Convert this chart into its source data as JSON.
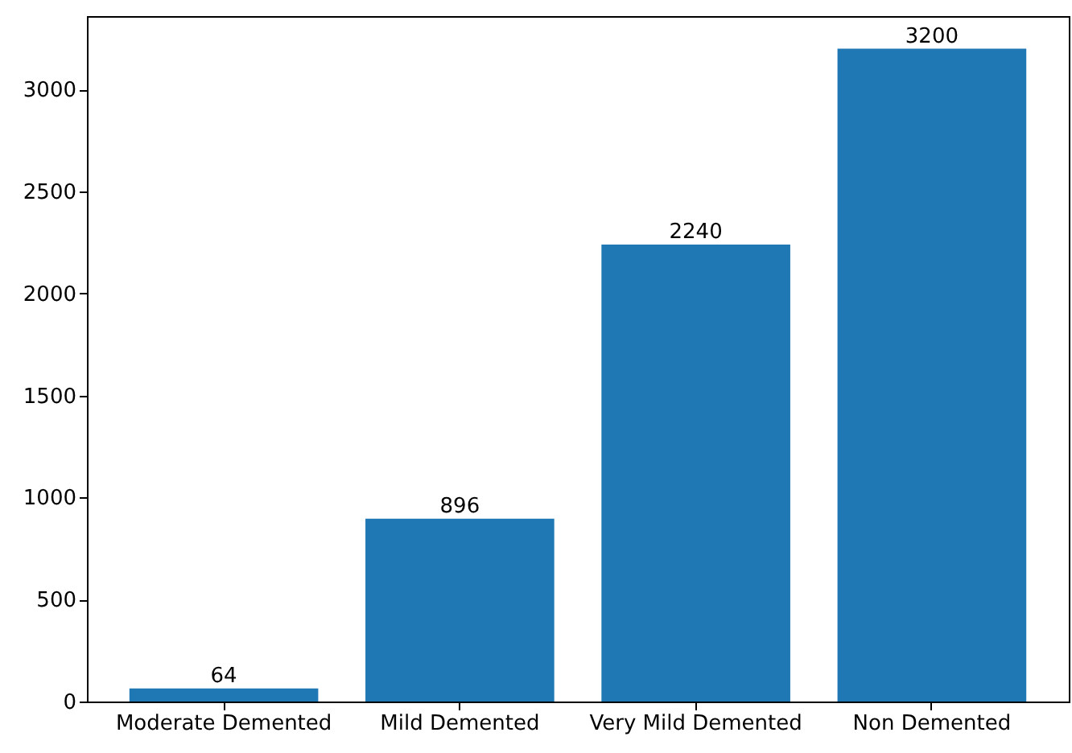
{
  "chart_data": {
    "type": "bar",
    "categories": [
      "Moderate  Demented",
      "Mild  Demented",
      "Very  Mild  Demented",
      "Non  Demented"
    ],
    "values": [
      64,
      896,
      2240,
      3200
    ],
    "color": "#1f77b4",
    "data_labels": true,
    "ylim": [
      0,
      3360
    ],
    "yticks": [
      0,
      500,
      1000,
      1500,
      2000,
      2500,
      3000
    ],
    "grid": false
  }
}
